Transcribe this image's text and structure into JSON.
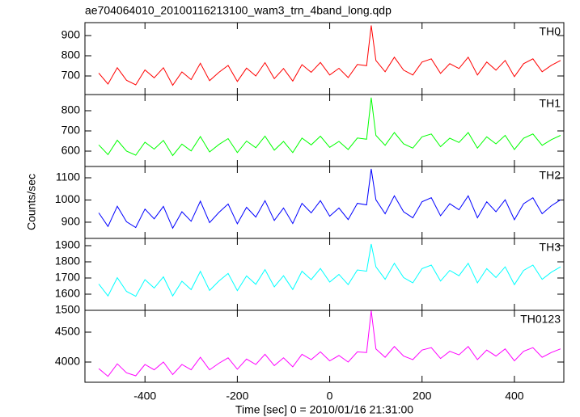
{
  "chart_data": [
    {
      "type": "line",
      "title": "ae704064010_20100116213100_wam3_trn_4band_long.qdp",
      "x": [
        -500,
        -480,
        -460,
        -440,
        -420,
        -400,
        -380,
        -360,
        -340,
        -320,
        -300,
        -280,
        -260,
        -240,
        -220,
        -200,
        -180,
        -160,
        -140,
        -120,
        -100,
        -80,
        -60,
        -40,
        -20,
        0,
        20,
        40,
        60,
        80,
        90,
        100,
        120,
        140,
        160,
        180,
        200,
        220,
        240,
        260,
        280,
        300,
        320,
        340,
        360,
        380,
        400,
        420,
        440,
        460,
        480,
        500
      ],
      "series": [
        {
          "name": "TH0",
          "color": "#ff0000",
          "values": [
            714,
            660,
            741,
            679,
            656,
            730,
            691,
            741,
            654,
            720,
            682,
            763,
            677,
            718,
            752,
            673,
            739,
            700,
            766,
            687,
            737,
            675,
            756,
            718,
            767,
            705,
            738,
            692,
            757,
            751,
            950,
            777,
            721,
            793,
            729,
            705,
            769,
            785,
            713,
            761,
            737,
            793,
            705,
            769,
            729,
            777,
            697,
            761,
            785,
            721,
            753,
            777
          ]
        }
      ],
      "ylim": [
        608,
        964
      ],
      "yticks": [
        700,
        800,
        900
      ]
    },
    {
      "type": "line",
      "x": [
        -500,
        -480,
        -460,
        -440,
        -420,
        -400,
        -380,
        -360,
        -340,
        -320,
        -300,
        -280,
        -260,
        -240,
        -220,
        -200,
        -180,
        -160,
        -140,
        -120,
        -100,
        -80,
        -60,
        -40,
        -20,
        0,
        20,
        40,
        60,
        80,
        90,
        100,
        120,
        140,
        160,
        180,
        200,
        220,
        240,
        260,
        280,
        300,
        320,
        340,
        360,
        380,
        400,
        420,
        440,
        460,
        480,
        500
      ],
      "series": [
        {
          "name": "TH1",
          "color": "#00ff00",
          "values": [
            631,
            583,
            654,
            600,
            580,
            644,
            610,
            653,
            578,
            635,
            601,
            672,
            596,
            633,
            662,
            593,
            650,
            617,
            674,
            605,
            648,
            593,
            665,
            631,
            674,
            619,
            648,
            608,
            665,
            659,
            865,
            678,
            629,
            692,
            636,
            615,
            671,
            685,
            622,
            664,
            643,
            692,
            615,
            671,
            636,
            678,
            608,
            664,
            685,
            629,
            657,
            678
          ]
        }
      ],
      "ylim": [
        524,
        880
      ],
      "yticks": [
        600,
        700,
        800
      ]
    },
    {
      "type": "line",
      "y_label": "Counts/sec",
      "x": [
        -500,
        -480,
        -460,
        -440,
        -420,
        -400,
        -380,
        -360,
        -340,
        -320,
        -300,
        -280,
        -260,
        -240,
        -220,
        -200,
        -180,
        -160,
        -140,
        -120,
        -100,
        -80,
        -60,
        -40,
        -20,
        0,
        20,
        40,
        60,
        80,
        90,
        100,
        120,
        140,
        160,
        180,
        200,
        220,
        240,
        260,
        280,
        300,
        320,
        340,
        360,
        380,
        400,
        420,
        440,
        460,
        480,
        500
      ],
      "series": [
        {
          "name": "TH2",
          "color": "#0000ff",
          "values": [
            942,
            881,
            972,
            902,
            876,
            959,
            915,
            971,
            873,
            947,
            904,
            995,
            898,
            944,
            982,
            893,
            967,
            923,
            997,
            908,
            964,
            894,
            985,
            942,
            997,
            927,
            964,
            912,
            985,
            978,
            1140,
            1001,
            938,
            1019,
            947,
            920,
            992,
            1010,
            929,
            983,
            956,
            1019,
            920,
            992,
            947,
            1001,
            911,
            983,
            1010,
            938,
            974,
            1001
          ]
        }
      ],
      "ylim": [
        827,
        1151
      ],
      "yticks": [
        900,
        1000,
        1100
      ]
    },
    {
      "type": "line",
      "x": [
        -500,
        -480,
        -460,
        -440,
        -420,
        -400,
        -380,
        -360,
        -340,
        -320,
        -300,
        -280,
        -260,
        -240,
        -220,
        -200,
        -180,
        -160,
        -140,
        -120,
        -100,
        -80,
        -60,
        -40,
        -20,
        0,
        20,
        40,
        60,
        80,
        90,
        100,
        120,
        140,
        160,
        180,
        200,
        220,
        240,
        260,
        280,
        300,
        320,
        340,
        360,
        380,
        400,
        420,
        440,
        460,
        480,
        500
      ],
      "series": [
        {
          "name": "TH3",
          "color": "#00ffff",
          "values": [
            1663,
            1589,
            1702,
            1617,
            1587,
            1690,
            1638,
            1707,
            1589,
            1680,
            1628,
            1741,
            1623,
            1681,
            1728,
            1622,
            1713,
            1661,
            1752,
            1645,
            1714,
            1629,
            1742,
            1690,
            1759,
            1675,
            1722,
            1659,
            1750,
            1742,
            1910,
            1769,
            1692,
            1791,
            1703,
            1670,
            1758,
            1780,
            1681,
            1747,
            1714,
            1791,
            1670,
            1758,
            1703,
            1769,
            1659,
            1747,
            1780,
            1692,
            1736,
            1769
          ]
        }
      ],
      "ylim": [
        1500,
        1945
      ],
      "yticks": [
        1500,
        1600,
        1700,
        1800,
        1900
      ]
    },
    {
      "type": "line",
      "x_label": "Time [sec] 0 = 2010/01/16 21:31:00",
      "x": [
        -500,
        -480,
        -460,
        -440,
        -420,
        -400,
        -380,
        -360,
        -340,
        -320,
        -300,
        -280,
        -260,
        -240,
        -220,
        -200,
        -180,
        -160,
        -140,
        -120,
        -100,
        -80,
        -60,
        -40,
        -20,
        0,
        20,
        40,
        60,
        80,
        90,
        100,
        120,
        140,
        160,
        180,
        200,
        220,
        240,
        260,
        280,
        300,
        320,
        340,
        360,
        380,
        400,
        420,
        440,
        460,
        480,
        500
      ],
      "series": [
        {
          "name": "TH0123",
          "color": "#ff00ff",
          "values": [
            3890,
            3760,
            3970,
            3820,
            3770,
            3960,
            3870,
            4000,
            3790,
            3960,
            3870,
            4080,
            3870,
            3980,
            4070,
            3880,
            4050,
            3960,
            4130,
            3940,
            4070,
            3920,
            4130,
            4040,
            4170,
            4020,
            4110,
            4000,
            4170,
            4160,
            4860,
            4220,
            4080,
            4260,
            4100,
            4040,
            4200,
            4240,
            4060,
            4180,
            4120,
            4260,
            4040,
            4200,
            4100,
            4220,
            4020,
            4180,
            4240,
            4080,
            4160,
            4220
          ]
        }
      ],
      "ylim": [
        3662,
        4865
      ],
      "yticks": [
        4000,
        4500
      ],
      "xlim": [
        -530,
        507
      ],
      "xticks": [
        -400,
        -200,
        0,
        200,
        400
      ]
    }
  ]
}
